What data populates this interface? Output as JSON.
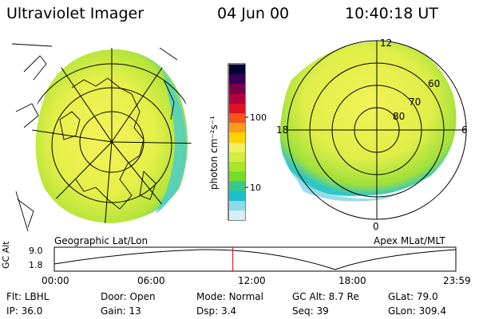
{
  "header": {
    "title": "Ultraviolet Imager",
    "date": "04 Jun 00",
    "time": "10:40:18 UT"
  },
  "left_panel": {
    "caption": "Geographic Lat/Lon"
  },
  "right_panel": {
    "caption": "Apex MLat/MLT",
    "mlt_labels": {
      "top": "12",
      "left": "18",
      "right": "6",
      "bottom": "0"
    },
    "lat_labels": [
      "60",
      "70",
      "80"
    ]
  },
  "colorbar": {
    "unit_label": "photon cm⁻²s⁻¹",
    "ticks": [
      "100",
      "10"
    ],
    "colors": [
      "#000033",
      "#3a0055",
      "#7a004a",
      "#b4003c",
      "#dd1122",
      "#f5541a",
      "#ff9a1a",
      "#ffd400",
      "#f0f060",
      "#d0ee40",
      "#a9e52a",
      "#76dc28",
      "#38c98a",
      "#1cc0cc",
      "#8ed9ea",
      "#d8eef4"
    ]
  },
  "altitude_plot": {
    "ylabel": "GC Alt",
    "yticks": [
      "9.0",
      "1.8"
    ],
    "xticks": [
      "00:00",
      "06:00",
      "12:00",
      "18:00",
      "23:59"
    ],
    "current_time_fraction": 0.4446
  },
  "info": {
    "row1": [
      {
        "label": "Flt:",
        "value": "LBHL"
      },
      {
        "label": "Door:",
        "value": "Open"
      },
      {
        "label": "Mode:",
        "value": "Normal"
      },
      {
        "label": "GC Alt:",
        "value": "8.7 Re"
      },
      {
        "label": "GLat:",
        "value": "79.0"
      }
    ],
    "row2": [
      {
        "label": "IP:",
        "value": "36.0"
      },
      {
        "label": "Gain:",
        "value": "13"
      },
      {
        "label": "Dsp:",
        "value": "3.4"
      },
      {
        "label": "Seq:",
        "value": "39"
      },
      {
        "label": "GLon:",
        "value": "309.4"
      }
    ]
  }
}
